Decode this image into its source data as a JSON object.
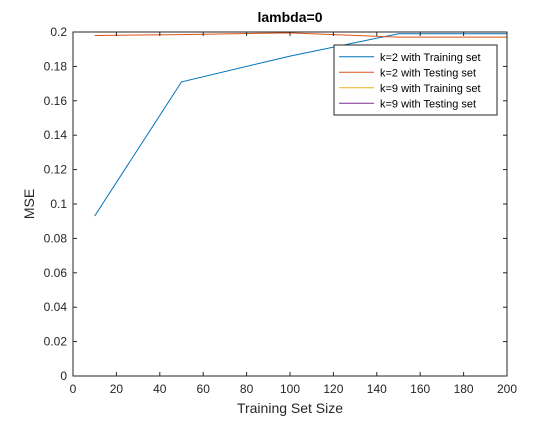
{
  "chart_data": {
    "type": "line",
    "title": "lambda=0",
    "xlabel": "Training Set Size",
    "ylabel": "MSE",
    "xlim": [
      0,
      200
    ],
    "ylim": [
      0,
      0.2
    ],
    "xticks": [
      0,
      20,
      40,
      60,
      80,
      100,
      120,
      140,
      160,
      180,
      200
    ],
    "xtick_labels": [
      "0",
      "20",
      "40",
      "60",
      "80",
      "100",
      "120",
      "140",
      "160",
      "180",
      "200"
    ],
    "yticks": [
      0,
      0.02,
      0.04,
      0.06,
      0.08,
      0.1,
      0.12,
      0.14,
      0.16,
      0.18,
      0.2
    ],
    "ytick_labels": [
      "0",
      "0.02",
      "0.04",
      "0.06",
      "0.08",
      "0.1",
      "0.12",
      "0.14",
      "0.16",
      "0.18",
      "0.2"
    ],
    "grid": false,
    "legend_position": "top-right",
    "series": [
      {
        "name": "k=2 with Training set",
        "color": "#0072BD",
        "x": [
          10,
          50,
          100,
          150,
          200
        ],
        "y": [
          0.093,
          0.171,
          0.186,
          0.199,
          0.199
        ]
      },
      {
        "name": "k=2 with Testing set",
        "color": "#D95319",
        "x": [
          10,
          50,
          100,
          150,
          200
        ],
        "y": [
          0.198,
          0.1985,
          0.1995,
          0.197,
          0.197
        ]
      },
      {
        "name": "k=9 with Training set",
        "color": "#EDB120",
        "x": [
          10,
          50,
          100,
          150,
          200
        ],
        "y": [
          0,
          0,
          0,
          0,
          0
        ]
      },
      {
        "name": "k=9 with Testing set",
        "color": "#7E2F8E",
        "x": [
          10,
          50,
          100,
          150,
          200
        ],
        "y": [
          0,
          0,
          0,
          0,
          0
        ]
      }
    ]
  }
}
